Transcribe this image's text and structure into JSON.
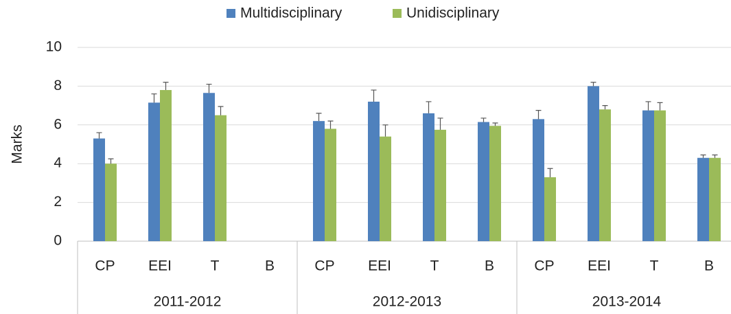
{
  "chart_data": {
    "type": "bar",
    "y_label": "Marks",
    "groups": [
      "2011-2012",
      "2012-2013",
      "2013-2014"
    ],
    "categories": [
      "CP",
      "EEI",
      "T",
      "B",
      "CP",
      "EEI",
      "T",
      "B",
      "CP",
      "EEI",
      "T",
      "B"
    ],
    "series": [
      {
        "name": "Multidisciplinary",
        "color": "#4f81bd",
        "values": [
          5.3,
          7.15,
          7.65,
          null,
          6.2,
          7.2,
          6.6,
          6.15,
          6.3,
          8.0,
          6.75,
          4.3
        ],
        "errors": [
          0.3,
          0.45,
          0.45,
          null,
          0.4,
          0.6,
          0.6,
          0.2,
          0.45,
          0.2,
          0.45,
          0.15
        ]
      },
      {
        "name": "Unidisciplinary",
        "color": "#9bbb59",
        "values": [
          4.0,
          7.8,
          6.5,
          null,
          5.8,
          5.4,
          5.75,
          5.95,
          3.3,
          6.8,
          6.75,
          4.3
        ],
        "errors": [
          0.25,
          0.4,
          0.45,
          null,
          0.4,
          0.6,
          0.6,
          0.15,
          0.45,
          0.2,
          0.4,
          0.15
        ]
      }
    ],
    "ylim": [
      0,
      10
    ],
    "yticks": [
      0,
      2,
      4,
      6,
      8,
      10
    ],
    "grid": true,
    "legend": "top"
  }
}
